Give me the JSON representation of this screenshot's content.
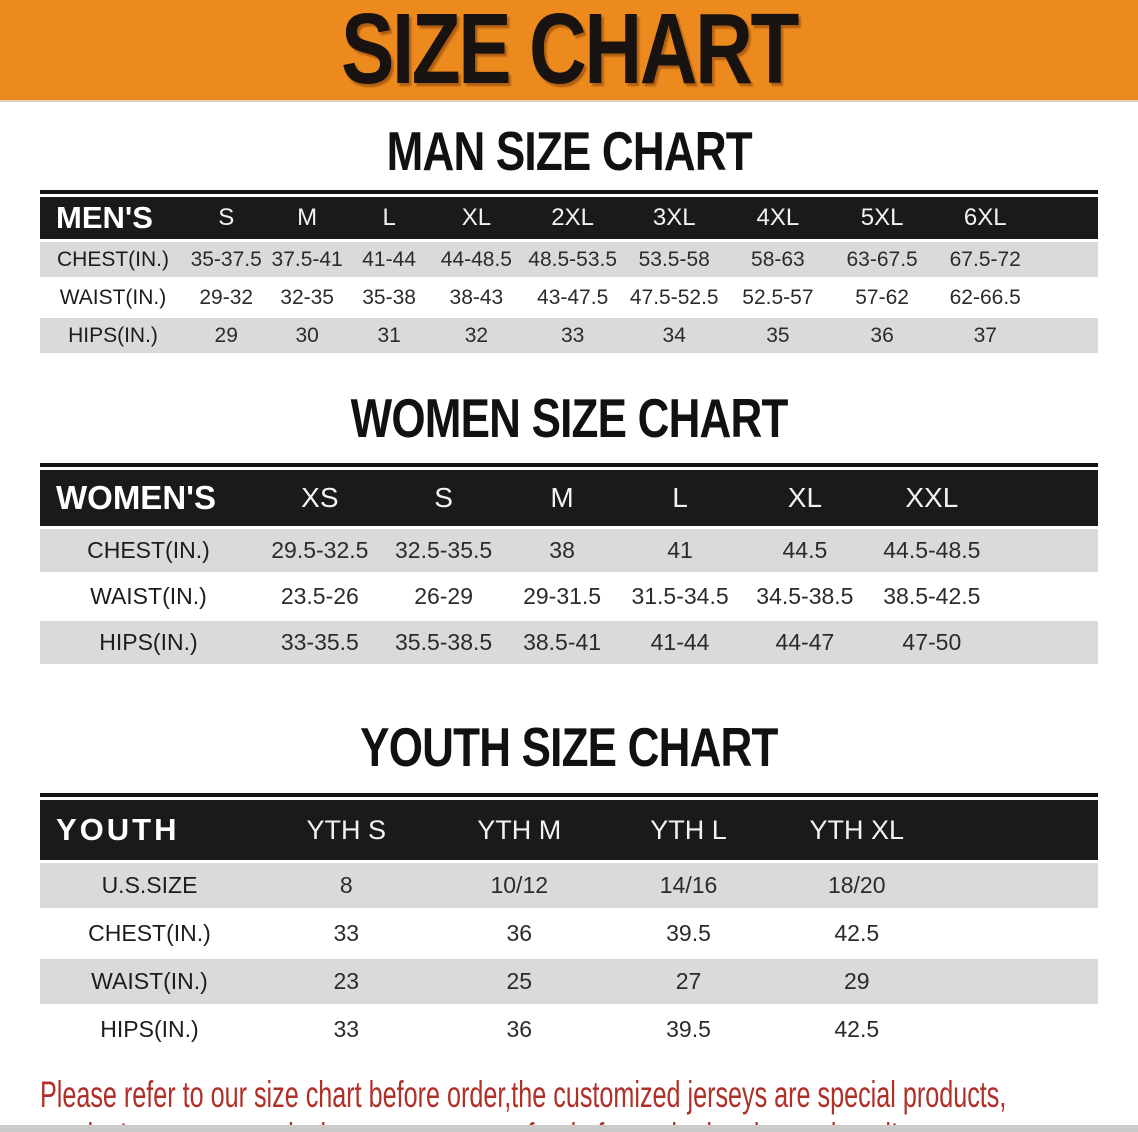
{
  "page": {
    "banner_title": "SIZE CHART",
    "disclaimer_line1": "Please refer to our size chart before order,the customized jerseys are special products,",
    "disclaimer_line2": "we don't accept cancel, change, teturn or refund after order has been placed!",
    "colors": {
      "banner_bg": "#EC8A1E",
      "banner_text": "#181310",
      "header_bar_bg": "#1A1A1A",
      "header_bar_text": "#FFFFFF",
      "row_stripe_gray": "#DADADA",
      "disclaimer_red": "#B03028",
      "bottom_strip_gray": "#CBCBCB"
    }
  },
  "charts": [
    {
      "id": "men",
      "heading": "MAN SIZE CHART",
      "label_header": "MEN'S",
      "columns": [
        "S",
        "M",
        "L",
        "XL",
        "2XL",
        "3XL",
        "4XL",
        "5XL",
        "6XL"
      ],
      "rows": [
        {
          "label": "CHEST(IN.)",
          "values": [
            "35-37.5",
            "37.5-41",
            "41-44",
            "44-48.5",
            "48.5-53.5",
            "53.5-58",
            "58-63",
            "63-67.5",
            "67.5-72"
          ]
        },
        {
          "label": "WAIST(IN.)",
          "values": [
            "29-32",
            "32-35",
            "35-38",
            "38-43",
            "43-47.5",
            "47.5-52.5",
            "52.5-57",
            "57-62",
            "62-66.5"
          ]
        },
        {
          "label": "HIPS(IN.)",
          "values": [
            "29",
            "30",
            "31",
            "32",
            "33",
            "34",
            "35",
            "36",
            "37"
          ]
        }
      ]
    },
    {
      "id": "women",
      "heading": "WOMEN SIZE CHART",
      "label_header": "WOMEN'S",
      "columns": [
        "XS",
        "S",
        "M",
        "L",
        "XL",
        "XXL"
      ],
      "rows": [
        {
          "label": "CHEST(IN.)",
          "values": [
            "29.5-32.5",
            "32.5-35.5",
            "38",
            "41",
            "44.5",
            "44.5-48.5"
          ]
        },
        {
          "label": "WAIST(IN.)",
          "values": [
            "23.5-26",
            "26-29",
            "29-31.5",
            "31.5-34.5",
            "34.5-38.5",
            "38.5-42.5"
          ]
        },
        {
          "label": "HIPS(IN.)",
          "values": [
            "33-35.5",
            "35.5-38.5",
            "38.5-41",
            "41-44",
            "44-47",
            "47-50"
          ]
        }
      ]
    },
    {
      "id": "youth",
      "heading": "YOUTH SIZE CHART",
      "label_header": "YOUTH",
      "columns": [
        "YTH S",
        "YTH M",
        "YTH L",
        "YTH XL"
      ],
      "rows": [
        {
          "label": "U.S.SIZE",
          "values": [
            "8",
            "10/12",
            "14/16",
            "18/20"
          ]
        },
        {
          "label": "CHEST(IN.)",
          "values": [
            "33",
            "36",
            "39.5",
            "42.5"
          ]
        },
        {
          "label": "WAIST(IN.)",
          "values": [
            "23",
            "25",
            "27",
            "29"
          ]
        },
        {
          "label": "HIPS(IN.)",
          "values": [
            "33",
            "36",
            "39.5",
            "42.5"
          ]
        }
      ]
    }
  ]
}
